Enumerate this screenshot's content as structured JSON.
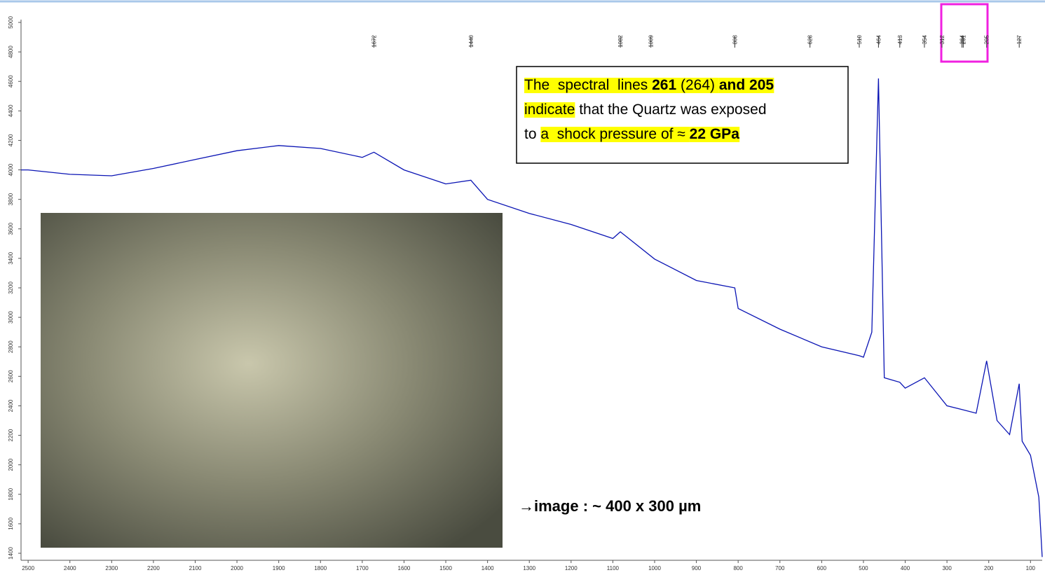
{
  "chart_data": {
    "type": "line",
    "x": [
      2517,
      2500,
      2400,
      2300,
      2200,
      2100,
      2000,
      1900,
      1800,
      1700,
      1672,
      1600,
      1500,
      1440,
      1400,
      1300,
      1200,
      1100,
      1082,
      1000,
      900,
      808,
      800,
      700,
      600,
      510,
      500,
      480,
      464,
      450,
      413,
      400,
      354,
      300,
      264,
      230,
      205,
      180,
      150,
      127,
      120,
      100,
      80,
      72
    ],
    "series": [
      {
        "color": "#0a14b4",
        "values": [
          4000,
          4000,
          3970,
          3960,
          4010,
          4070,
          4130,
          4165,
          4145,
          4085,
          4120,
          4000,
          3905,
          3930,
          3800,
          3705,
          3630,
          3535,
          3580,
          3395,
          3250,
          3200,
          3060,
          2920,
          2800,
          2740,
          2730,
          2900,
          4620,
          2590,
          2560,
          2520,
          2590,
          2400,
          2375,
          2350,
          2705,
          2300,
          2205,
          2550,
          2160,
          2065,
          1780,
          1375
        ]
      }
    ],
    "xlim": [
      2517,
      72
    ],
    "ylim": [
      1400,
      5000
    ],
    "xticks": [
      2500,
      2400,
      2300,
      2200,
      2100,
      2000,
      1900,
      1800,
      1700,
      1600,
      1500,
      1400,
      1300,
      1200,
      1100,
      1000,
      900,
      800,
      700,
      600,
      500,
      400,
      300,
      200,
      100
    ],
    "yticks": [
      1400,
      1600,
      1800,
      2000,
      2200,
      2400,
      2600,
      2800,
      3000,
      3200,
      3400,
      3600,
      3800,
      4000,
      4200,
      4400,
      4600,
      4800,
      5000
    ],
    "peak_labels": [
      1672,
      1440,
      1082,
      1009,
      808,
      628,
      510,
      464,
      413,
      354,
      312,
      264,
      261,
      205,
      127
    ],
    "annotation": [
      [
        {
          "text": "The  spectral  lines ",
          "bold": false,
          "highlight": true
        },
        {
          "text": "261",
          "bold": true,
          "highlight": true
        },
        {
          "text": " (264) ",
          "bold": false,
          "highlight": true
        },
        {
          "text": "and 205",
          "bold": true,
          "highlight": true
        }
      ],
      [
        {
          "text": "indicate",
          "bold": false,
          "highlight": true
        },
        {
          "text": " that the Quartz was exposed",
          "bold": false,
          "highlight": false
        }
      ],
      [
        {
          "text": "to ",
          "bold": false,
          "highlight": false
        },
        {
          "text": "a  shock pressure of ≈ ",
          "bold": false,
          "highlight": true
        },
        {
          "text": "22 GPa",
          "bold": true,
          "highlight": true
        }
      ]
    ],
    "image_caption": "→image :  ~ 400 x 300 µm"
  }
}
